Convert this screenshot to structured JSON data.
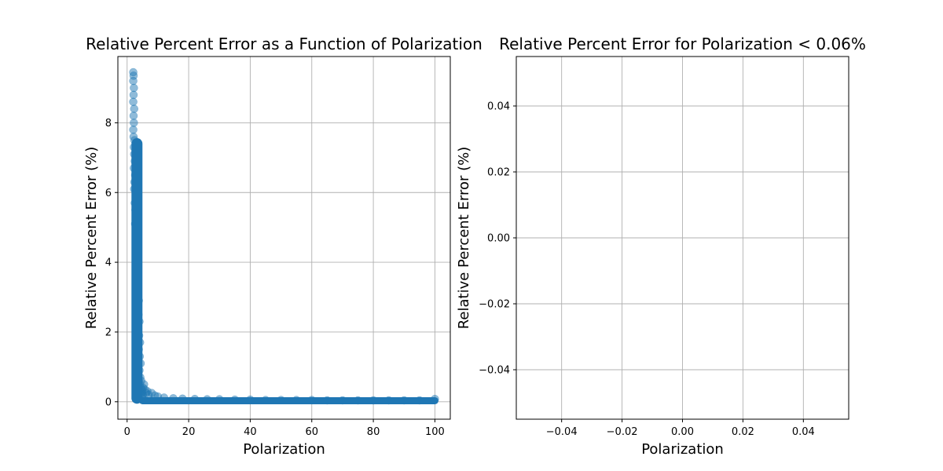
{
  "chart_data": [
    {
      "type": "scatter",
      "title": "Relative Percent Error as a Function of Polarization",
      "xlabel": "Polarization",
      "ylabel": "Relative Percent Error (%)",
      "xlim": [
        -3,
        105
      ],
      "ylim": [
        -0.5,
        9.9
      ],
      "xticks": [
        0,
        20,
        40,
        60,
        80,
        100
      ],
      "yticks": [
        0,
        2,
        4,
        6,
        8
      ],
      "grid": true,
      "color": "#1f77b4",
      "alpha": 0.5,
      "x": [
        2.0,
        2.1,
        2.0,
        2.2,
        2.1,
        2.0,
        2.3,
        2.1,
        2.2,
        2.0,
        2.1,
        2.4,
        2.2,
        2.3,
        2.5,
        2.2,
        2.6,
        2.4,
        2.3,
        2.8,
        2.5,
        2.7,
        3.0,
        2.6,
        2.9,
        3.2,
        2.8,
        3.1,
        3.4,
        3.0,
        3.3,
        3.6,
        3.2,
        3.5,
        3.8,
        3.4,
        3.7,
        4.0,
        3.6,
        3.9,
        4.2,
        3.8,
        4.1,
        4.4,
        4.0,
        4.3,
        4.6,
        4.2,
        4.5,
        4.8,
        4.4,
        4.7,
        5.0,
        4.6,
        5.2,
        4.9,
        5.5,
        5.1,
        5.8,
        6.2,
        6.6,
        7.0,
        8.0,
        9.0,
        10.0,
        12.0,
        15.0,
        18.0,
        22.0,
        26.0,
        30.0,
        35.0,
        40.0,
        45.0,
        50.0,
        55.0,
        60.0,
        65.0,
        70.0,
        75.0,
        80.0,
        85.0,
        90.0,
        95.0,
        100.0
      ],
      "y": [
        9.45,
        9.35,
        9.2,
        9.0,
        8.8,
        8.6,
        8.4,
        8.2,
        8.0,
        7.8,
        7.6,
        7.5,
        7.3,
        7.1,
        6.9,
        6.7,
        6.5,
        6.3,
        6.1,
        5.9,
        5.7,
        5.5,
        5.3,
        5.1,
        4.9,
        4.7,
        4.5,
        4.3,
        4.1,
        3.9,
        3.7,
        3.5,
        3.3,
        3.1,
        2.9,
        2.7,
        2.5,
        2.3,
        2.1,
        1.9,
        1.7,
        1.5,
        1.3,
        1.1,
        0.9,
        0.7,
        0.6,
        0.5,
        0.4,
        0.35,
        0.3,
        0.25,
        0.2,
        0.15,
        0.4,
        0.3,
        0.5,
        0.2,
        0.35,
        0.25,
        0.3,
        0.2,
        0.25,
        0.18,
        0.15,
        0.12,
        0.1,
        0.09,
        0.08,
        0.07,
        0.07,
        0.06,
        0.06,
        0.05,
        0.05,
        0.05,
        0.05,
        0.04,
        0.04,
        0.04,
        0.04,
        0.04,
        0.04,
        0.04,
        0.08
      ]
    },
    {
      "type": "scatter",
      "title": "Relative Percent Error for Polarization < 0.06%",
      "xlabel": "Polarization",
      "ylabel": "Relative Percent Error (%)",
      "xlim": [
        -0.055,
        0.055
      ],
      "ylim": [
        -0.055,
        0.055
      ],
      "xticks": [
        -0.04,
        -0.02,
        0.0,
        0.02,
        0.04
      ],
      "yticks": [
        -0.04,
        -0.02,
        0.0,
        0.02,
        0.04
      ],
      "xtick_labels": [
        "−0.04",
        "−0.02",
        "0.00",
        "0.02",
        "0.04"
      ],
      "ytick_labels": [
        "−0.04",
        "−0.02",
        "0.00",
        "0.02",
        "0.04"
      ],
      "grid": true,
      "x": [],
      "y": []
    }
  ]
}
